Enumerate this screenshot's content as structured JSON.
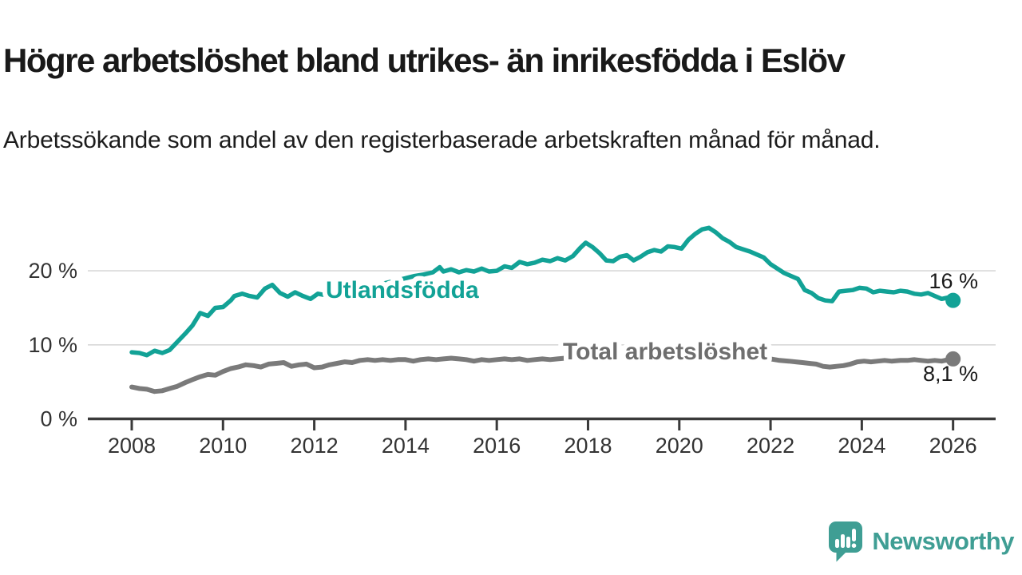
{
  "header": {
    "title": "Högre arbetslöshet bland utrikes- än inrikesfödda i Eslöv",
    "subtitle": "Arbetssökande som andel av den registerbaserade arbetskraften månad för månad."
  },
  "footer": {
    "brand": "Newsworthy",
    "logo_icon": "newsworthy-speech-bubble-bar-chart-icon"
  },
  "colors": {
    "accent_teal": "#12a296",
    "line_gray": "#7a7a7a",
    "label_gray": "#6e6e6e",
    "value_text": "#1a1a1a",
    "axis": "#3a3a3a",
    "grid": "#d8d8d8",
    "logo_teal": "#3f9e94",
    "background": "#ffffff"
  },
  "chart_data": {
    "type": "line",
    "title": "Högre arbetslöshet bland utrikes- än inrikesfödda i Eslöv",
    "subtitle": "Arbetssökande som andel av den registerbaserade arbetskraften månad för månad.",
    "xlabel": "",
    "ylabel": "",
    "grid": "horizontal-only",
    "legend_position": "inline-on-line",
    "xlim": [
      2007.05,
      2026.9
    ],
    "ylim": [
      0,
      27
    ],
    "x_ticks": [
      "2008",
      "2010",
      "2012",
      "2014",
      "2016",
      "2018",
      "2020",
      "2022",
      "2024",
      "2026"
    ],
    "x_tick_values": [
      2008,
      2010,
      2012,
      2014,
      2016,
      2018,
      2020,
      2022,
      2024,
      2026
    ],
    "y_ticks": [
      {
        "label": "0 %",
        "value": 0
      },
      {
        "label": "10 %",
        "value": 10
      },
      {
        "label": "20 %",
        "value": 20
      }
    ],
    "series": [
      {
        "name": "Utlandsfödda",
        "color_key": "accent_teal",
        "end_label": "16 %",
        "end_value": 16.0,
        "end_dot": true,
        "points": [
          [
            2008.0,
            9.0
          ],
          [
            2008.17,
            8.9
          ],
          [
            2008.33,
            8.6
          ],
          [
            2008.5,
            9.2
          ],
          [
            2008.67,
            8.9
          ],
          [
            2008.83,
            9.3
          ],
          [
            2009.0,
            10.4
          ],
          [
            2009.17,
            11.5
          ],
          [
            2009.33,
            12.6
          ],
          [
            2009.5,
            14.3
          ],
          [
            2009.67,
            13.9
          ],
          [
            2009.83,
            15.0
          ],
          [
            2010.0,
            15.1
          ],
          [
            2010.17,
            16.0
          ],
          [
            2010.25,
            16.6
          ],
          [
            2010.42,
            16.9
          ],
          [
            2010.58,
            16.6
          ],
          [
            2010.75,
            16.4
          ],
          [
            2010.92,
            17.6
          ],
          [
            2011.08,
            18.1
          ],
          [
            2011.25,
            17.0
          ],
          [
            2011.42,
            16.5
          ],
          [
            2011.58,
            17.1
          ],
          [
            2011.75,
            16.6
          ],
          [
            2011.92,
            16.2
          ],
          [
            2012.08,
            16.9
          ],
          [
            2012.25,
            16.7
          ],
          [
            2012.4,
            17.0
          ],
          [
            2012.6,
            17.1
          ],
          [
            2012.8,
            17.3
          ],
          [
            2013.0,
            17.6
          ],
          [
            2013.2,
            17.8
          ],
          [
            2013.4,
            18.1
          ],
          [
            2013.6,
            18.4
          ],
          [
            2013.8,
            18.7
          ],
          [
            2014.0,
            19.0
          ],
          [
            2014.2,
            19.3
          ],
          [
            2014.4,
            19.5
          ],
          [
            2014.6,
            19.8
          ],
          [
            2014.75,
            20.5
          ],
          [
            2014.83,
            19.9
          ],
          [
            2015.0,
            20.2
          ],
          [
            2015.17,
            19.8
          ],
          [
            2015.33,
            20.1
          ],
          [
            2015.5,
            19.9
          ],
          [
            2015.67,
            20.3
          ],
          [
            2015.83,
            19.9
          ],
          [
            2016.0,
            20.0
          ],
          [
            2016.17,
            20.6
          ],
          [
            2016.33,
            20.4
          ],
          [
            2016.5,
            21.2
          ],
          [
            2016.67,
            20.9
          ],
          [
            2016.83,
            21.1
          ],
          [
            2017.0,
            21.5
          ],
          [
            2017.17,
            21.3
          ],
          [
            2017.33,
            21.7
          ],
          [
            2017.5,
            21.4
          ],
          [
            2017.67,
            22.0
          ],
          [
            2017.83,
            23.1
          ],
          [
            2017.95,
            23.8
          ],
          [
            2018.1,
            23.2
          ],
          [
            2018.25,
            22.4
          ],
          [
            2018.4,
            21.4
          ],
          [
            2018.55,
            21.3
          ],
          [
            2018.7,
            21.9
          ],
          [
            2018.85,
            22.1
          ],
          [
            2019.0,
            21.4
          ],
          [
            2019.15,
            21.9
          ],
          [
            2019.3,
            22.5
          ],
          [
            2019.45,
            22.8
          ],
          [
            2019.6,
            22.6
          ],
          [
            2019.75,
            23.3
          ],
          [
            2019.9,
            23.2
          ],
          [
            2020.05,
            23.0
          ],
          [
            2020.2,
            24.2
          ],
          [
            2020.35,
            25.0
          ],
          [
            2020.5,
            25.6
          ],
          [
            2020.65,
            25.8
          ],
          [
            2020.8,
            25.2
          ],
          [
            2020.95,
            24.4
          ],
          [
            2021.1,
            23.9
          ],
          [
            2021.25,
            23.2
          ],
          [
            2021.4,
            22.9
          ],
          [
            2021.55,
            22.6
          ],
          [
            2021.7,
            22.2
          ],
          [
            2021.85,
            21.8
          ],
          [
            2022.0,
            20.9
          ],
          [
            2022.15,
            20.3
          ],
          [
            2022.3,
            19.7
          ],
          [
            2022.45,
            19.3
          ],
          [
            2022.6,
            18.9
          ],
          [
            2022.75,
            17.4
          ],
          [
            2022.9,
            17.0
          ],
          [
            2023.05,
            16.3
          ],
          [
            2023.2,
            16.0
          ],
          [
            2023.35,
            15.9
          ],
          [
            2023.5,
            17.2
          ],
          [
            2023.65,
            17.3
          ],
          [
            2023.8,
            17.4
          ],
          [
            2023.95,
            17.7
          ],
          [
            2024.1,
            17.6
          ],
          [
            2024.25,
            17.1
          ],
          [
            2024.4,
            17.3
          ],
          [
            2024.55,
            17.2
          ],
          [
            2024.7,
            17.1
          ],
          [
            2024.85,
            17.3
          ],
          [
            2025.0,
            17.2
          ],
          [
            2025.15,
            16.9
          ],
          [
            2025.3,
            16.8
          ],
          [
            2025.45,
            17.0
          ],
          [
            2025.6,
            16.6
          ],
          [
            2025.75,
            16.2
          ],
          [
            2025.9,
            16.4
          ],
          [
            2026.0,
            16.0
          ]
        ]
      },
      {
        "name": "Total arbetslöshet",
        "color_key": "line_gray",
        "end_label": "8,1 %",
        "end_value": 8.1,
        "end_dot": true,
        "points": [
          [
            2008.0,
            4.3
          ],
          [
            2008.17,
            4.1
          ],
          [
            2008.33,
            4.0
          ],
          [
            2008.5,
            3.7
          ],
          [
            2008.67,
            3.8
          ],
          [
            2008.83,
            4.1
          ],
          [
            2009.0,
            4.4
          ],
          [
            2009.17,
            4.9
          ],
          [
            2009.33,
            5.3
          ],
          [
            2009.5,
            5.7
          ],
          [
            2009.67,
            6.0
          ],
          [
            2009.83,
            5.9
          ],
          [
            2010.0,
            6.4
          ],
          [
            2010.17,
            6.8
          ],
          [
            2010.33,
            7.0
          ],
          [
            2010.5,
            7.3
          ],
          [
            2010.67,
            7.2
          ],
          [
            2010.83,
            7.0
          ],
          [
            2011.0,
            7.4
          ],
          [
            2011.17,
            7.5
          ],
          [
            2011.33,
            7.6
          ],
          [
            2011.5,
            7.1
          ],
          [
            2011.67,
            7.3
          ],
          [
            2011.83,
            7.4
          ],
          [
            2012.0,
            6.9
          ],
          [
            2012.17,
            7.0
          ],
          [
            2012.33,
            7.3
          ],
          [
            2012.5,
            7.5
          ],
          [
            2012.67,
            7.7
          ],
          [
            2012.83,
            7.6
          ],
          [
            2013.0,
            7.9
          ],
          [
            2013.17,
            8.0
          ],
          [
            2013.33,
            7.9
          ],
          [
            2013.5,
            8.0
          ],
          [
            2013.67,
            7.9
          ],
          [
            2013.83,
            8.0
          ],
          [
            2014.0,
            8.0
          ],
          [
            2014.17,
            7.8
          ],
          [
            2014.33,
            8.0
          ],
          [
            2014.5,
            8.1
          ],
          [
            2014.67,
            8.0
          ],
          [
            2014.83,
            8.1
          ],
          [
            2015.0,
            8.2
          ],
          [
            2015.17,
            8.1
          ],
          [
            2015.33,
            8.0
          ],
          [
            2015.5,
            7.8
          ],
          [
            2015.67,
            8.0
          ],
          [
            2015.83,
            7.9
          ],
          [
            2016.0,
            8.0
          ],
          [
            2016.17,
            8.1
          ],
          [
            2016.33,
            8.0
          ],
          [
            2016.5,
            8.1
          ],
          [
            2016.67,
            7.9
          ],
          [
            2016.83,
            8.0
          ],
          [
            2017.0,
            8.1
          ],
          [
            2017.17,
            8.0
          ],
          [
            2017.33,
            8.1
          ],
          [
            2017.5,
            8.2
          ],
          [
            2017.67,
            8.3
          ],
          [
            2018.0,
            8.4
          ],
          [
            2018.5,
            8.5
          ],
          [
            2019.0,
            8.4
          ],
          [
            2019.5,
            8.5
          ],
          [
            2020.0,
            8.7
          ],
          [
            2020.5,
            8.9
          ],
          [
            2021.0,
            8.7
          ],
          [
            2021.5,
            8.4
          ],
          [
            2022.0,
            8.1
          ],
          [
            2022.2,
            7.9
          ],
          [
            2022.4,
            7.8
          ],
          [
            2022.55,
            7.7
          ],
          [
            2022.7,
            7.6
          ],
          [
            2022.85,
            7.5
          ],
          [
            2023.0,
            7.4
          ],
          [
            2023.15,
            7.1
          ],
          [
            2023.3,
            7.0
          ],
          [
            2023.45,
            7.1
          ],
          [
            2023.6,
            7.2
          ],
          [
            2023.75,
            7.4
          ],
          [
            2023.9,
            7.7
          ],
          [
            2024.05,
            7.8
          ],
          [
            2024.2,
            7.7
          ],
          [
            2024.35,
            7.8
          ],
          [
            2024.5,
            7.9
          ],
          [
            2024.65,
            7.8
          ],
          [
            2024.85,
            7.9
          ],
          [
            2025.0,
            7.9
          ],
          [
            2025.15,
            8.0
          ],
          [
            2025.3,
            7.9
          ],
          [
            2025.45,
            7.8
          ],
          [
            2025.6,
            7.9
          ],
          [
            2025.75,
            7.8
          ],
          [
            2025.9,
            8.0
          ],
          [
            2026.0,
            8.1
          ]
        ]
      }
    ]
  }
}
